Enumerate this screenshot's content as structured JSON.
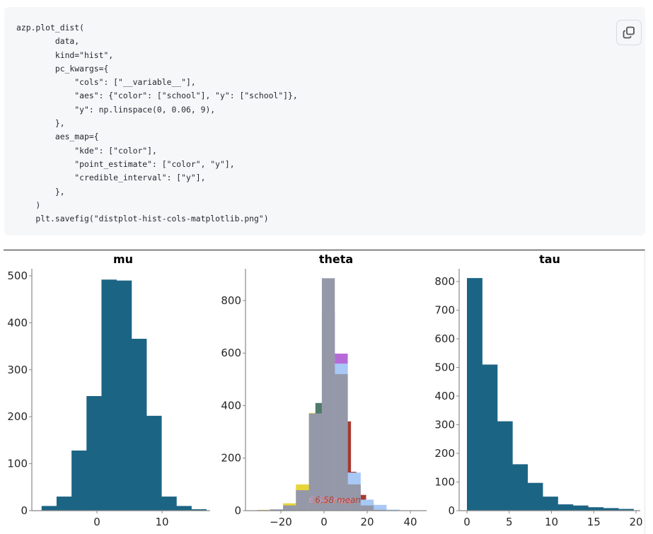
{
  "code": {
    "lines": [
      "azp.plot_dist(",
      "        data,",
      "        kind=\"hist\",",
      "        pc_kwargs={",
      "            \"cols\": [\"__variable__\"],",
      "            \"aes\": {\"color\": [\"school\"], \"y\": [\"school\"]},",
      "            \"y\": np.linspace(0, 0.06, 9),",
      "        },",
      "        aes_map={",
      "            \"kde\": [\"color\"],",
      "            \"point_estimate\": [\"color\", \"y\"],",
      "            \"credible_interval\": [\"y\"],",
      "        },",
      "    )",
      "    plt.savefig(\"distplot-hist-cols-matplotlib.png\")"
    ],
    "copy_button": {
      "icon": "copy-icon",
      "label": "Copy"
    }
  },
  "colors": {
    "bar": "#1c6484",
    "theta_overlay": "#9498a8",
    "axis": "#888888",
    "tick_text": "#262626",
    "school_colors": [
      "#e8d53a",
      "#b66ad8",
      "#4f7a6a",
      "#a63a30",
      "#e84a2a",
      "#a8c8f5",
      "#9498a8"
    ]
  },
  "chart_data": [
    {
      "type": "bar",
      "title": "mu",
      "xlabel": "",
      "ylabel": "",
      "xticks": [
        0,
        10
      ],
      "yticks": [
        0,
        100,
        200,
        300,
        400,
        500
      ],
      "xlim": [
        -9.5,
        18
      ],
      "ylim": [
        0,
        520
      ],
      "bin_edges": [
        -8.5,
        -6.2,
        -3.9,
        -1.6,
        0.7,
        3.0,
        5.3,
        7.6,
        9.9,
        12.2,
        14.5,
        16.8
      ],
      "values": [
        10,
        30,
        128,
        244,
        492,
        490,
        366,
        202,
        30,
        10,
        3
      ],
      "grid": false
    },
    {
      "type": "bar",
      "title": "theta",
      "xlabel": "",
      "ylabel": "",
      "xticks": [
        -20,
        0,
        20,
        40
      ],
      "yticks": [
        0,
        200,
        400,
        600,
        800
      ],
      "xlim": [
        -35,
        48
      ],
      "ylim": [
        0,
        920
      ],
      "note": "overlaid histograms per school; annotation text '6.58 mean' (overlapping) near baseline",
      "series": [
        {
          "name": "school-overlay",
          "color": "#9498a8",
          "bin_edges": [
            -31,
            -25,
            -19,
            -13,
            -7,
            -1,
            5,
            11,
            17,
            23,
            29
          ],
          "values": [
            2,
            5,
            20,
            78,
            370,
            885,
            520,
            100,
            20,
            3
          ]
        },
        {
          "name": "school-purple",
          "color": "#b66ad8",
          "bars": [
            {
              "x0": -1,
              "x1": 5,
              "v": 760
            },
            {
              "x0": 5,
              "x1": 11,
              "v": 598
            },
            {
              "x0": -13,
              "x1": -7,
              "v": 90
            }
          ]
        },
        {
          "name": "school-yellow",
          "color": "#e8d53a",
          "bars": [
            {
              "x0": -7,
              "x1": -1,
              "v": 372
            },
            {
              "x0": -13,
              "x1": -7,
              "v": 100
            },
            {
              "x0": -19,
              "x1": -13,
              "v": 28
            },
            {
              "x0": -31,
              "x1": -25,
              "v": 3
            }
          ]
        },
        {
          "name": "school-green",
          "color": "#4f7a6a",
          "bars": [
            {
              "x0": -4,
              "x1": -1,
              "v": 410
            }
          ]
        },
        {
          "name": "school-red",
          "color": "#a63a30",
          "bars": [
            {
              "x0": 11,
              "x1": 12.5,
              "v": 340
            },
            {
              "x0": 11,
              "x1": 15,
              "v": 148
            },
            {
              "x0": 17,
              "x1": 19.5,
              "v": 60
            },
            {
              "x0": 17,
              "x1": 23,
              "v": 28
            }
          ]
        },
        {
          "name": "school-lightblue",
          "color": "#a8c8f5",
          "bars": [
            {
              "x0": 5,
              "x1": 11,
              "v": 560
            },
            {
              "x0": 11,
              "x1": 17,
              "v": 145
            },
            {
              "x0": 17,
              "x1": 23,
              "v": 42
            },
            {
              "x0": 23,
              "x1": 29,
              "v": 22
            },
            {
              "x0": 29,
              "x1": 35,
              "v": 4
            }
          ]
        }
      ],
      "annotation": "6.58 mean",
      "grid": false
    },
    {
      "type": "bar",
      "title": "tau",
      "xlabel": "",
      "ylabel": "",
      "xticks": [
        0,
        5,
        10,
        15,
        20
      ],
      "yticks": [
        0,
        100,
        200,
        300,
        400,
        500,
        600,
        700,
        800
      ],
      "xlim": [
        -0.8,
        20.5
      ],
      "ylim": [
        0,
        850
      ],
      "bin_edges": [
        0,
        1.79,
        3.58,
        5.37,
        7.16,
        8.95,
        10.74,
        12.53,
        14.32,
        16.11,
        17.9,
        19.7
      ],
      "values": [
        812,
        510,
        312,
        162,
        97,
        49,
        22,
        18,
        12,
        9,
        6
      ],
      "grid": false
    }
  ]
}
